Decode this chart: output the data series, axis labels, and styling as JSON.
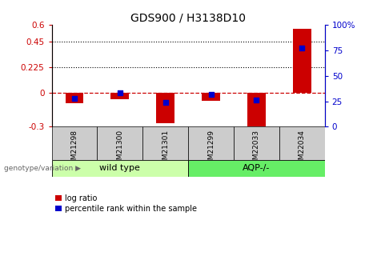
{
  "title": "GDS900 / H3138D10",
  "samples": [
    "GSM21298",
    "GSM21300",
    "GSM21301",
    "GSM21299",
    "GSM22033",
    "GSM22034"
  ],
  "log_ratio": [
    -0.09,
    -0.06,
    -0.27,
    -0.07,
    -0.31,
    0.565
  ],
  "percentile_rank": [
    28,
    33,
    24,
    32,
    26,
    77
  ],
  "genotype_groups": [
    {
      "label": "wild type",
      "start": 0,
      "end": 3
    },
    {
      "label": "AQP-/-",
      "start": 3,
      "end": 6
    }
  ],
  "ylim_left": [
    -0.3,
    0.6
  ],
  "ylim_right": [
    0,
    100
  ],
  "left_yticks": [
    -0.3,
    0,
    0.225,
    0.45,
    0.6
  ],
  "right_yticks": [
    0,
    25,
    50,
    75,
    100
  ],
  "hlines": [
    0.225,
    0.45
  ],
  "bar_color": "#cc0000",
  "dot_color": "#0000cc",
  "zero_line_color": "#cc0000",
  "wt_bg": "#ccffaa",
  "aqp_bg": "#66ee66",
  "sample_bg": "#cccccc",
  "legend_bar_label": "log ratio",
  "legend_dot_label": "percentile rank within the sample",
  "genotype_label": "genotype/variation",
  "bar_width": 0.4,
  "dot_size": 25
}
